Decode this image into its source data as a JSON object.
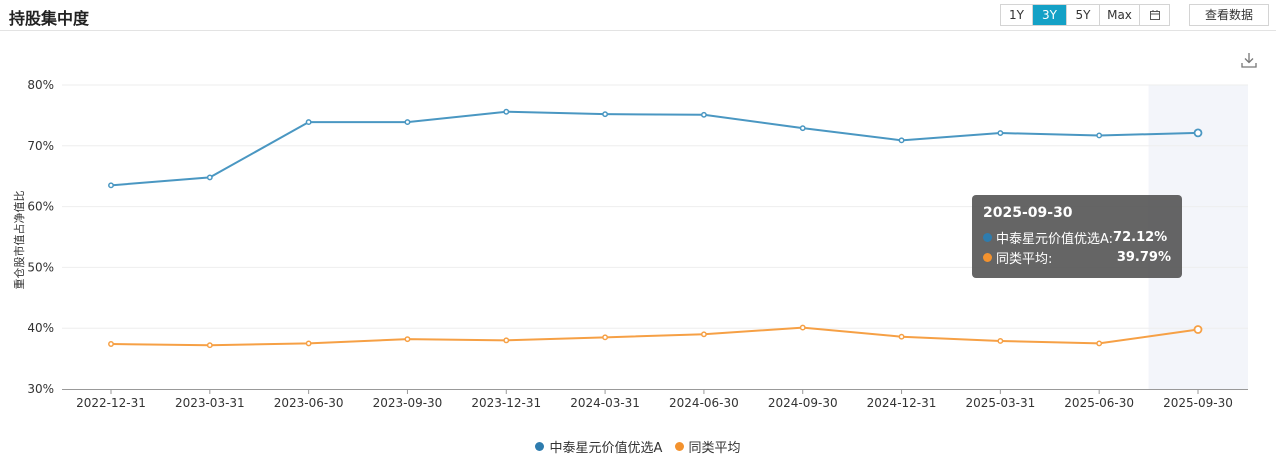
{
  "header": {
    "title": "持股集中度",
    "ranges": [
      "1Y",
      "3Y",
      "5Y",
      "Max"
    ],
    "active_range": "3Y",
    "view_data_label": "查看数据"
  },
  "tooltip": {
    "date": "2025-09-30",
    "rows": [
      {
        "name": "中泰星元价值优选A:",
        "value": "72.12%",
        "color": "#2e7cae"
      },
      {
        "name": "同类平均:",
        "value": "39.79%",
        "color": "#f3922e"
      }
    ]
  },
  "legend": [
    {
      "name": "中泰星元价值优选A",
      "color": "#2e7cae"
    },
    {
      "name": "同类平均",
      "color": "#f3922e"
    }
  ],
  "chart_data": {
    "type": "line",
    "title": "持股集中度",
    "ylabel": "重仓股市值占净值比",
    "xlabel": "",
    "ylim": [
      30,
      80
    ],
    "y_ticks": [
      "30%",
      "40%",
      "50%",
      "60%",
      "70%",
      "80%"
    ],
    "categories": [
      "2022-12-31",
      "2023-03-31",
      "2023-06-30",
      "2023-09-30",
      "2023-12-31",
      "2024-03-31",
      "2024-06-30",
      "2024-09-30",
      "2024-12-31",
      "2025-03-31",
      "2025-06-30",
      "2025-09-30"
    ],
    "series": [
      {
        "name": "中泰星元价值优选A",
        "color": "#4a97c2",
        "values": [
          63.5,
          64.8,
          73.9,
          73.9,
          75.6,
          75.2,
          75.1,
          72.9,
          70.9,
          72.1,
          71.7,
          72.12
        ]
      },
      {
        "name": "同类平均",
        "color": "#f6a045",
        "values": [
          37.4,
          37.2,
          37.5,
          38.2,
          38.0,
          38.5,
          39.0,
          40.1,
          38.6,
          37.9,
          37.5,
          39.79
        ]
      }
    ],
    "highlight_category": "2025-09-30",
    "grid": true,
    "legend_position": "bottom"
  }
}
